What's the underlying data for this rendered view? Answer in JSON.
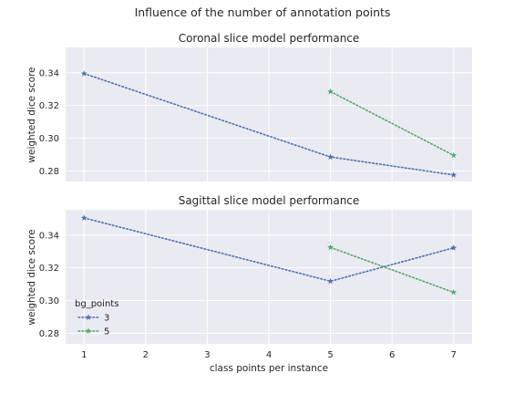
{
  "figure": {
    "suptitle": "Influence of the number of annotation points",
    "xlabel": "class points per instance"
  },
  "colors": {
    "bg": "#eaeaf2",
    "grid": "#ffffff",
    "series_3": "#4c72b0",
    "series_5": "#55a868"
  },
  "chart_data": [
    {
      "type": "line",
      "title": "Coronal slice model performance",
      "xlabel": "",
      "ylabel": "weighted dice score",
      "xlim": [
        0.7,
        7.3
      ],
      "ylim": [
        0.2735,
        0.3555
      ],
      "xticks": [],
      "yticks": [
        0.28,
        0.3,
        0.32,
        0.34
      ],
      "ytick_labels": [
        "0.28",
        "0.30",
        "0.32",
        "0.34"
      ],
      "grid": true,
      "series": [
        {
          "name": "3",
          "x": [
            1,
            5,
            7
          ],
          "y": [
            0.3395,
            0.2885,
            0.2775
          ]
        },
        {
          "name": "5",
          "x": [
            5,
            7
          ],
          "y": [
            0.3285,
            0.2895
          ]
        }
      ]
    },
    {
      "type": "line",
      "title": "Sagittal slice model performance",
      "xlabel": "class points per instance",
      "ylabel": "weighted dice score",
      "xlim": [
        0.7,
        7.3
      ],
      "ylim": [
        0.2735,
        0.3555
      ],
      "xticks": [
        1,
        2,
        3,
        4,
        5,
        6,
        7
      ],
      "xtick_labels": [
        "1",
        "2",
        "3",
        "4",
        "5",
        "6",
        "7"
      ],
      "yticks": [
        0.28,
        0.3,
        0.32,
        0.34
      ],
      "ytick_labels": [
        "0.28",
        "0.30",
        "0.32",
        "0.34"
      ],
      "grid": true,
      "legend": {
        "title": "bg_points",
        "placement": "lower-left",
        "entries": [
          "3",
          "5"
        ]
      },
      "series": [
        {
          "name": "3",
          "x": [
            1,
            5,
            7
          ],
          "y": [
            0.3505,
            0.3118,
            0.3322
          ]
        },
        {
          "name": "5",
          "x": [
            5,
            7
          ],
          "y": [
            0.3325,
            0.305
          ]
        }
      ]
    }
  ]
}
